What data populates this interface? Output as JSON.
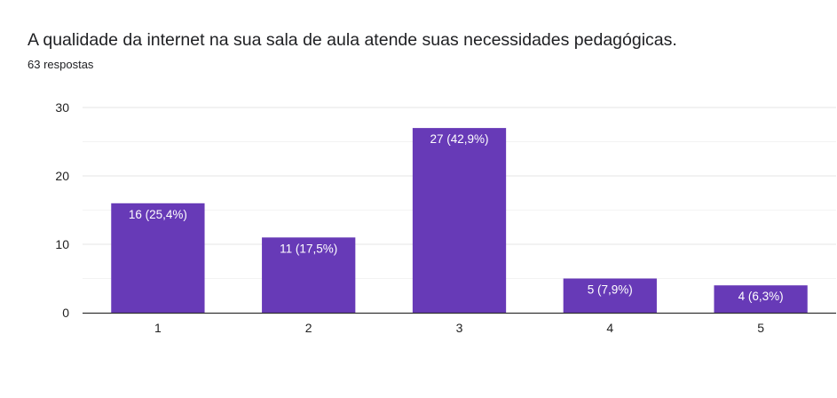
{
  "question": {
    "title": "A qualidade da internet na sua sala de aula atende suas necessidades pedagógicas.",
    "responses": "63 respostas"
  },
  "colors": {
    "bar": "#673ab7",
    "grid_major": "#e6e6e6",
    "grid_minor": "#f3f3f3",
    "axis": "#333333",
    "tick_text": "#222222",
    "label_text": "#ffffff"
  },
  "chart_data": {
    "type": "bar",
    "title": "A qualidade da internet na sua sala de aula atende suas necessidades pedagógicas.",
    "xlabel": "",
    "ylabel": "",
    "categories": [
      "1",
      "2",
      "3",
      "4",
      "5"
    ],
    "values": [
      16,
      11,
      27,
      5,
      4
    ],
    "data_labels": [
      "16 (25,4%)",
      "11 (17,5%)",
      "27 (42,9%)",
      "5 (7,9%)",
      "4 (6,3%)"
    ],
    "ylim": [
      0,
      30
    ],
    "yticks": [
      0,
      10,
      20,
      30
    ],
    "grid": true,
    "legend": "none"
  }
}
